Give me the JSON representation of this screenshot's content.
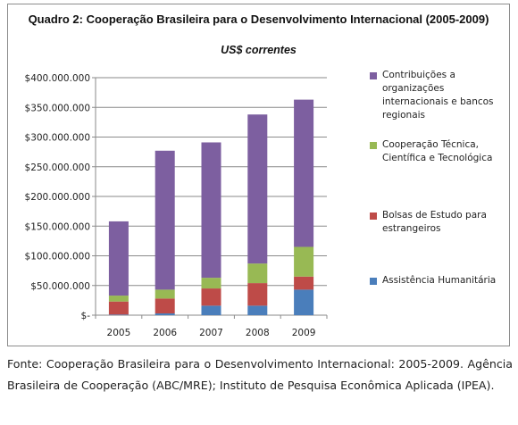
{
  "chart_data": {
    "type": "bar",
    "stacked": true,
    "title": "Quadro 2: Cooperação Brasileira para o Desenvolvimento Internacional (2005-2009)",
    "subtitle": "US$ correntes",
    "categories": [
      "2005",
      "2006",
      "2007",
      "2008",
      "2009"
    ],
    "series": [
      {
        "name": "Assistência Humanitária",
        "color": "#4a7ebb",
        "values": [
          1000000,
          3000000,
          16000000,
          16000000,
          43000000
        ]
      },
      {
        "name": "Bolsas de Estudo para estrangeiros",
        "color": "#be4b48",
        "values": [
          22000000,
          25000000,
          29000000,
          38000000,
          22000000
        ]
      },
      {
        "name": "Cooperação Técnica, Científica e Tecnológica",
        "color": "#98b954",
        "values": [
          10000000,
          15000000,
          18000000,
          33000000,
          50000000
        ]
      },
      {
        "name": "Contribuições a organizações internacionais e bancos regionais",
        "color": "#7d5fa0",
        "values": [
          125000000,
          234000000,
          228000000,
          251000000,
          248000000
        ]
      }
    ],
    "ylim": [
      0,
      400000000
    ],
    "yticks": [
      0,
      50000000,
      100000000,
      150000000,
      200000000,
      250000000,
      300000000,
      350000000,
      400000000
    ],
    "ytick_labels": [
      "$-",
      "$50.000.000",
      "$100.000.000",
      "$150.000.000",
      "$200.000.000",
      "$250.000.000",
      "$300.000.000",
      "$350.000.000",
      "$400.000.000"
    ],
    "grid": true,
    "legend_position": "right",
    "xlabel": "",
    "ylabel": ""
  },
  "caption": "Fonte: Cooperação Brasileira para o Desenvolvimento Internacional: 2005-2009. Agência Brasileira de Cooperação (ABC/MRE); Instituto de Pesquisa Econômica Aplicada (IPEA)."
}
